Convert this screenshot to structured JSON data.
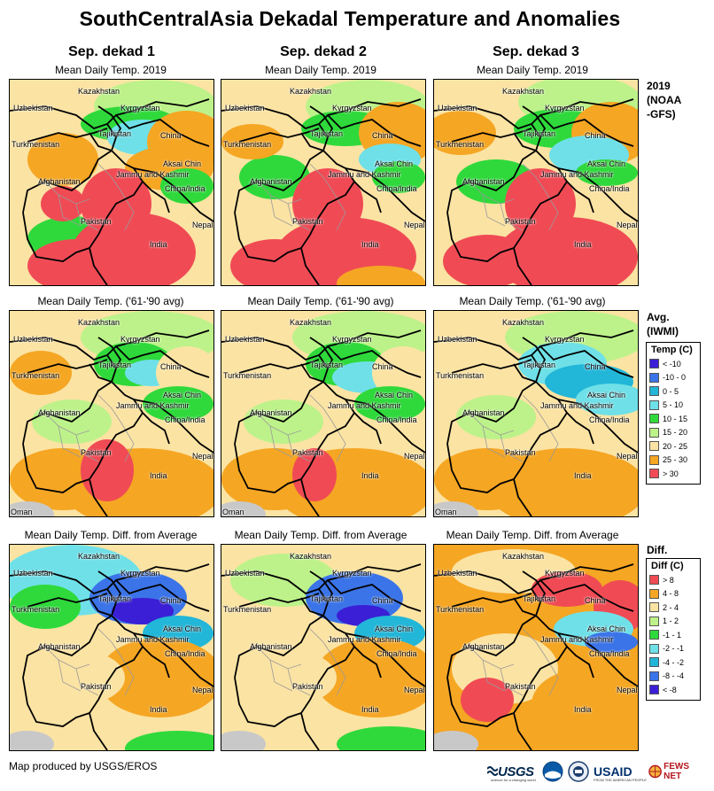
{
  "title": "SouthCentralAsia Dekadal Temperature and Anomalies",
  "columns": [
    "Sep. dekad 1",
    "Sep. dekad 2",
    "Sep. dekad 3"
  ],
  "rows": [
    {
      "panel_label": "Mean Daily Temp. 2019",
      "side_label": [
        "2019",
        "(NOAA",
        "-GFS)"
      ],
      "style": "current"
    },
    {
      "panel_label": "Mean Daily Temp. ('61-'90 avg)",
      "side_label": [
        "Avg.",
        "(IWMI)"
      ],
      "style": "avg"
    },
    {
      "panel_label": "Mean Daily Temp. Diff. from Average",
      "side_label": [
        "Diff."
      ],
      "style": "diff"
    }
  ],
  "place_names": {
    "kazakhstan": "Kazakhstan",
    "uzbekistan": "Uzbekistan",
    "kyrgyzstan": "Kyrgyzstan",
    "tajikistan": "Tajikistan",
    "turkmenistan": "Turkmenistan",
    "china": "China",
    "aksai_chin": "Aksai Chin",
    "jammu_kashmir": "Jammu and Kashmir",
    "china_india": "China/India",
    "afghanistan": "Afghanistan",
    "pakistan": "Pakistan",
    "nepal": "Nepal",
    "india": "India",
    "oman": "Oman"
  },
  "temp_legend": {
    "title": "Temp (C)",
    "items": [
      {
        "label": "< -10",
        "color": "#3a1fd6"
      },
      {
        "label": "-10 - 0",
        "color": "#3b74e8"
      },
      {
        "label": "0 - 5",
        "color": "#22b6d8"
      },
      {
        "label": "5 - 10",
        "color": "#6fe0e8"
      },
      {
        "label": "10 - 15",
        "color": "#2fd93b"
      },
      {
        "label": "15 - 20",
        "color": "#bdf28a"
      },
      {
        "label": "20 - 25",
        "color": "#fbe3a3"
      },
      {
        "label": "25 - 30",
        "color": "#f5a623"
      },
      {
        "label": "> 30",
        "color": "#f04b55"
      }
    ]
  },
  "diff_legend": {
    "title": "Diff (C)",
    "items": [
      {
        "label": "> 8",
        "color": "#f04b55"
      },
      {
        "label": "4 - 8",
        "color": "#f5a623"
      },
      {
        "label": "2 - 4",
        "color": "#fbe3a3"
      },
      {
        "label": "1 - 2",
        "color": "#bdf28a"
      },
      {
        "label": "-1 - 1",
        "color": "#2fd93b"
      },
      {
        "label": "-2 - -1",
        "color": "#6fe0e8"
      },
      {
        "label": "-4 - -2",
        "color": "#22b6d8"
      },
      {
        "label": "-8 - -4",
        "color": "#3b74e8"
      },
      {
        "label": "< -8",
        "color": "#3a1fd6"
      }
    ]
  },
  "footer": "Map produced by USGS/EROS",
  "logos": {
    "usgs": "USGS",
    "usgs_tagline": "science for a changing world",
    "usaid": "USAID",
    "usaid_tagline": "FROM THE AMERICAN PEOPLE",
    "fews": "FEWS NET"
  }
}
